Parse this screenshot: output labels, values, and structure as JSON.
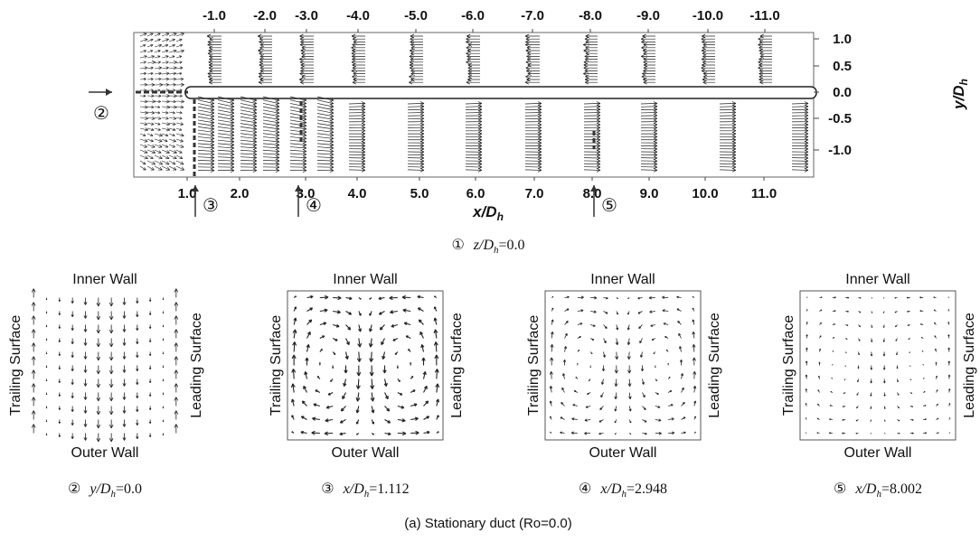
{
  "top_plot": {
    "top_ticks": [
      "-1.0",
      "-2.0",
      "-3.0",
      "-4.0",
      "-5.0",
      "-6.0",
      "-7.0",
      "-8.0",
      "-9.0",
      "-10.0",
      "-11.0"
    ],
    "bottom_ticks": [
      "1.0",
      "2.0",
      "3.0",
      "4.0",
      "5.0",
      "6.0",
      "7.0",
      "8.0",
      "9.0",
      "10.0",
      "11.0"
    ],
    "right_ticks": [
      "1.0",
      "0.5",
      "0.0",
      "-0.5",
      "-1.0"
    ],
    "x_label": {
      "main": "x/D",
      "sub": "h"
    },
    "y_label": {
      "main": "y/D",
      "sub": "h"
    },
    "markers": [
      "②",
      "③",
      "④",
      "⑤"
    ],
    "caption": {
      "num": "①",
      "main": "z/D",
      "sub": "h",
      "rest": "=0.0"
    }
  },
  "panels": [
    {
      "top": "Inner Wall",
      "bottom": "Outer Wall",
      "left": "Trailing Surface",
      "right": "Leading Surface",
      "caption": {
        "num": "②",
        "main": "y/D",
        "sub": "h",
        "rest": "=0.0"
      }
    },
    {
      "top": "Inner Wall",
      "bottom": "Outer Wall",
      "left": "Trailing Surface",
      "right": "Leading Surface",
      "caption": {
        "num": "③",
        "main": "x/D",
        "sub": "h",
        "rest": "=1.112"
      }
    },
    {
      "top": "Inner Wall",
      "bottom": "Outer Wall",
      "left": "Trailing Surface",
      "right": "Leading Surface",
      "caption": {
        "num": "④",
        "main": "x/D",
        "sub": "h",
        "rest": "=2.948"
      }
    },
    {
      "top": "Inner Wall",
      "bottom": "Outer Wall",
      "left": "Trailing Surface",
      "right": "Leading Surface",
      "caption": {
        "num": "⑤",
        "main": "x/D",
        "sub": "h",
        "rest": "=8.002"
      }
    }
  ],
  "caption": "(a) Stationary duct (Ro=0.0)"
}
